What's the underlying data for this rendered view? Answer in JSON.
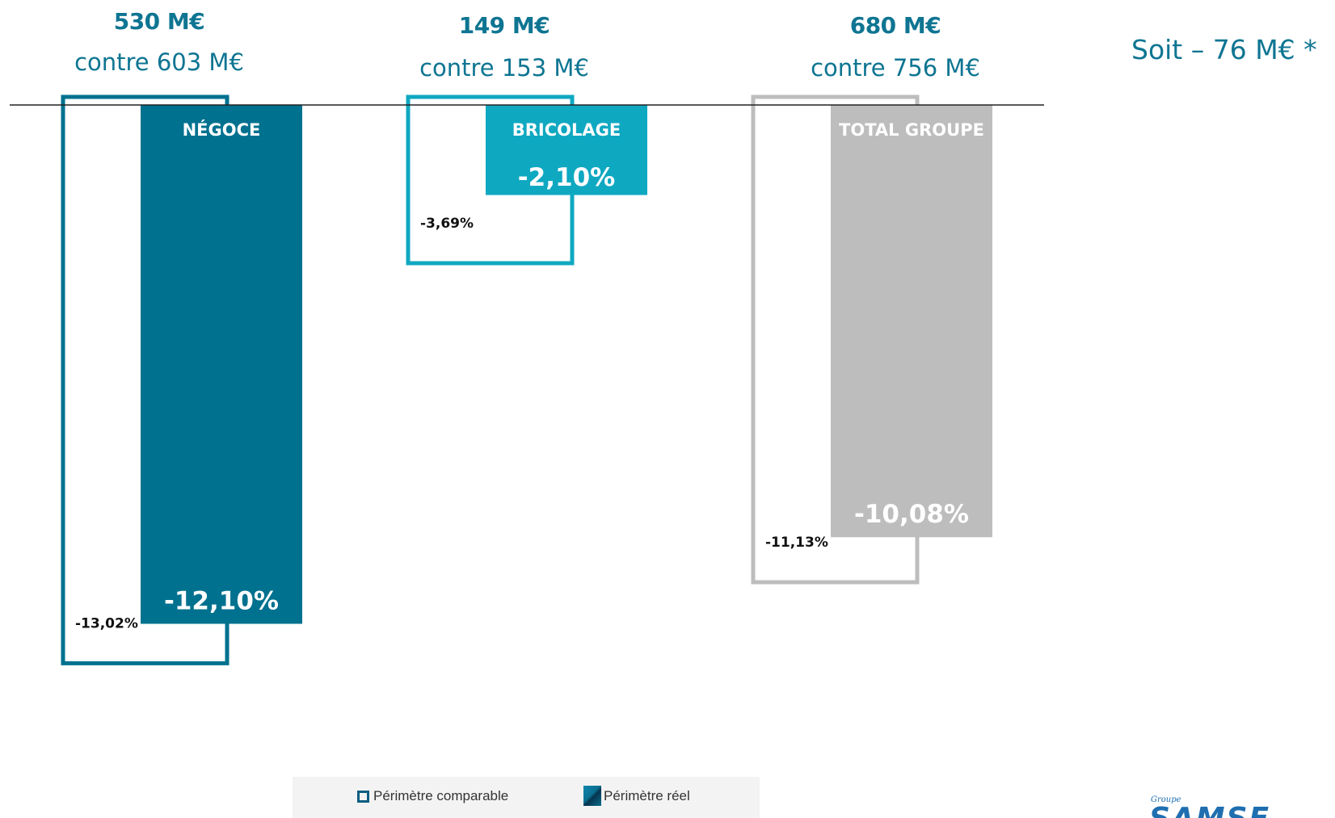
{
  "chart_data": {
    "type": "bar",
    "categories": [
      "NÉGOCE",
      "BRICOLAGE",
      "TOTAL GROUPE"
    ],
    "series": [
      {
        "name": "Périmètre comparable",
        "values": [
          -13.02,
          -3.69,
          -11.13
        ],
        "labels": [
          "-13,02%",
          "-3,69%",
          "-11,13%"
        ]
      },
      {
        "name": "Périmètre réel",
        "values": [
          -12.1,
          -2.1,
          -10.08
        ],
        "labels": [
          "-12,10%",
          "-2,10%",
          "-10,08%"
        ]
      }
    ],
    "colors": {
      "real": [
        "#00718f",
        "#0fa8c1",
        "#bdbdbd"
      ],
      "comparable_outline": [
        "#00718f",
        "#0fa8c1",
        "#bdbdbd"
      ]
    },
    "ylim": [
      -14,
      0
    ],
    "legend": "bottom"
  },
  "headlines": [
    {
      "value": "530 M€",
      "comparison": "contre 603 M€"
    },
    {
      "value": "149 M€",
      "comparison": "contre 153 M€"
    },
    {
      "value": "680 M€",
      "comparison": "contre 756 M€"
    }
  ],
  "summary": "Soit – 76 M€ *",
  "legend": {
    "comparable": "Périmètre comparable",
    "real": "Périmètre réel"
  },
  "logo": {
    "small": "Groupe",
    "big": "SAMSE"
  }
}
